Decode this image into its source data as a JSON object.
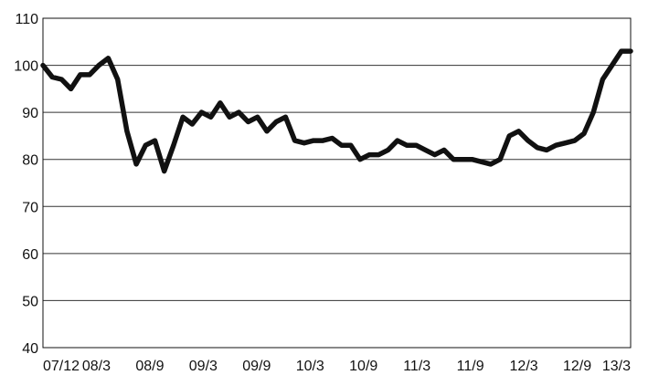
{
  "chart_data": {
    "type": "line",
    "title": "",
    "xlabel": "",
    "ylabel": "",
    "ylim": [
      40,
      110
    ],
    "yticks": [
      40,
      50,
      60,
      70,
      80,
      90,
      100,
      110
    ],
    "xticks": [
      "07/12",
      "08/3",
      "08/9",
      "09/3",
      "09/9",
      "10/3",
      "10/9",
      "11/3",
      "11/9",
      "12/3",
      "12/9",
      "13/3"
    ],
    "grid": "horizontal",
    "legend": "none",
    "line_color": "#111111",
    "series": [
      {
        "x": [
          "2007-12",
          "2008-01",
          "2008-02",
          "2008-03",
          "2008-04",
          "2008-05",
          "2008-06",
          "2008-07",
          "2008-08",
          "2008-09",
          "2008-10",
          "2008-11",
          "2008-12",
          "2009-01",
          "2009-02",
          "2009-03",
          "2009-04",
          "2009-05",
          "2009-06",
          "2009-07",
          "2009-08",
          "2009-09",
          "2009-10",
          "2009-11",
          "2009-12",
          "2010-01",
          "2010-02",
          "2010-03",
          "2010-04",
          "2010-05",
          "2010-06",
          "2010-07",
          "2010-08",
          "2010-09",
          "2010-10",
          "2010-11",
          "2010-12",
          "2011-01",
          "2011-02",
          "2011-03",
          "2011-04",
          "2011-05",
          "2011-06",
          "2011-07",
          "2011-08",
          "2011-09",
          "2011-10",
          "2011-11",
          "2011-12",
          "2012-01",
          "2012-02",
          "2012-03",
          "2012-04",
          "2012-05",
          "2012-06",
          "2012-07",
          "2012-08",
          "2012-09",
          "2012-10",
          "2012-11",
          "2012-12",
          "2013-01",
          "2013-02",
          "2013-03"
        ],
        "values": [
          100,
          97.5,
          97,
          95,
          98,
          98,
          100,
          101.5,
          97,
          86,
          79,
          83,
          84,
          77.5,
          83,
          89,
          87.5,
          90,
          89,
          92,
          89,
          90,
          88,
          89,
          86,
          88,
          89,
          84,
          83.5,
          84,
          84,
          84.5,
          83,
          83,
          80,
          81,
          81,
          82,
          84,
          83,
          83,
          82,
          81,
          82,
          80,
          80,
          80,
          79.5,
          79,
          80,
          85,
          86,
          84,
          82.5,
          82,
          83,
          83.5,
          84,
          85.5,
          90,
          97,
          100,
          103,
          103
        ]
      }
    ]
  }
}
